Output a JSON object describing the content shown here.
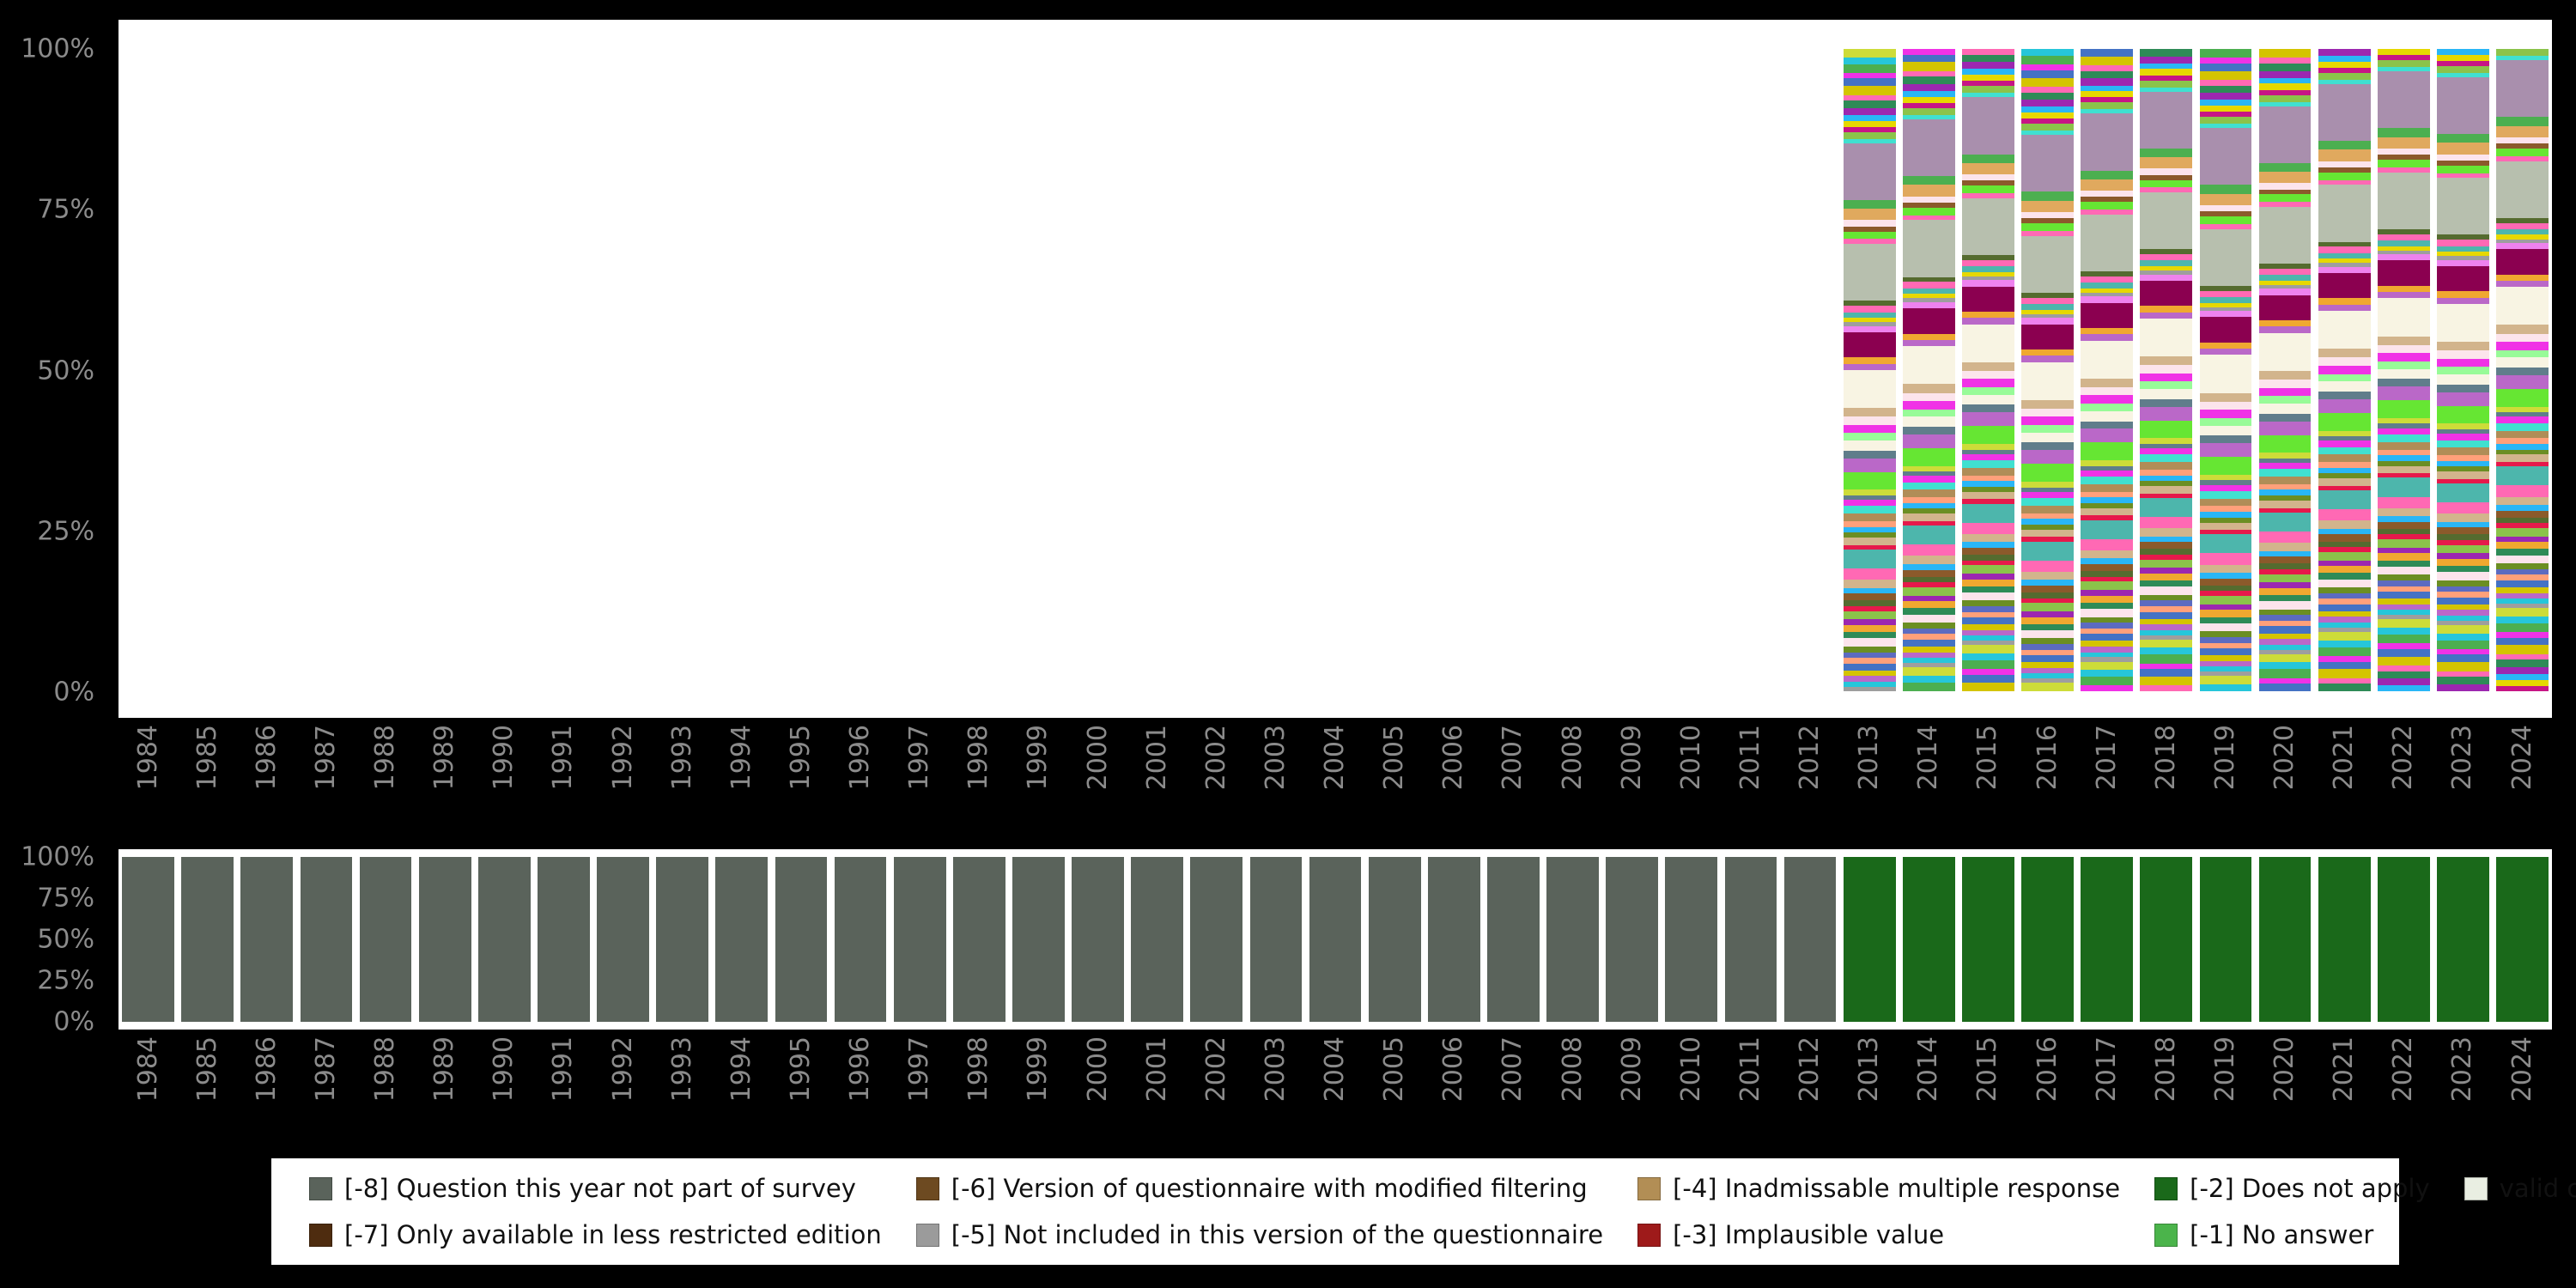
{
  "style": {
    "background": "#000000",
    "plot_background": "#ffffff",
    "axis_text_color": "#8b8b8b"
  },
  "chart_data": [
    {
      "id": "value-distribution-by-year",
      "type": "bar",
      "stacked": true,
      "categories": [
        "1984",
        "1985",
        "1986",
        "1987",
        "1988",
        "1989",
        "1990",
        "1991",
        "1992",
        "1993",
        "1994",
        "1995",
        "1996",
        "1997",
        "1998",
        "1999",
        "2000",
        "2001",
        "2002",
        "2003",
        "2004",
        "2005",
        "2006",
        "2007",
        "2008",
        "2009",
        "2010",
        "2011",
        "2012",
        "2013",
        "2014",
        "2015",
        "2016",
        "2017",
        "2018",
        "2019",
        "2020",
        "2021",
        "2022",
        "2023",
        "2024"
      ],
      "ylim": [
        0,
        100
      ],
      "y_ticks": [
        "0%",
        "25%",
        "50%",
        "75%",
        "100%"
      ],
      "unit": "percent",
      "grid": false,
      "palette": [
        "#e6194b",
        "#f032e6",
        "#ff69b4",
        "#c71585",
        "#8b0050",
        "#9c27b0",
        "#ba68c8",
        "#a98fad",
        "#5c6bc0",
        "#4472c4",
        "#29b6f6",
        "#26c6da",
        "#4db6ac",
        "#2e8b57",
        "#556b2f",
        "#4caf50",
        "#8bc34a",
        "#66e633",
        "#cddc39",
        "#d4c400",
        "#f0a830",
        "#e0a95e",
        "#d2b48c",
        "#b08d57",
        "#8b5a2b",
        "#f8f4e3",
        "#fce4ec",
        "#b7bfae",
        "#9e9e9e",
        "#607d8b",
        "#98fb98",
        "#40e0d0",
        "#ee82ee",
        "#ffa07a",
        "#6b8e23",
        "#e6d800"
      ],
      "base_segments": [
        [
          18,
          1.3
        ],
        [
          11,
          1.1
        ],
        [
          15,
          1.4
        ],
        [
          1,
          0.9
        ],
        [
          9,
          1.2
        ],
        [
          19,
          1.4
        ],
        [
          2,
          0.9
        ],
        [
          13,
          1.2
        ],
        [
          5,
          1.1
        ],
        [
          10,
          0.9
        ],
        [
          35,
          1.0
        ],
        [
          3,
          0.8
        ],
        [
          16,
          1.1
        ],
        [
          31,
          0.7
        ],
        [
          7,
          9.0
        ],
        [
          15,
          1.4
        ],
        [
          21,
          1.8
        ],
        [
          26,
          1.0
        ],
        [
          24,
          0.8
        ],
        [
          17,
          1.2
        ],
        [
          2,
          0.8
        ],
        [
          27,
          9.0
        ],
        [
          14,
          0.8
        ],
        [
          2,
          1.0
        ],
        [
          12,
          0.9
        ],
        [
          35,
          0.7
        ],
        [
          28,
          0.6
        ],
        [
          32,
          1.0
        ],
        [
          4,
          4.0
        ],
        [
          20,
          1.0
        ],
        [
          6,
          1.0
        ],
        [
          25,
          6.0
        ],
        [
          22,
          1.4
        ],
        [
          26,
          1.3
        ],
        [
          1,
          1.3
        ],
        [
          30,
          1.2
        ],
        [
          25,
          1.6
        ],
        [
          29,
          1.2
        ],
        [
          6,
          2.2
        ],
        [
          17,
          2.8
        ],
        [
          18,
          0.9
        ],
        [
          29,
          0.7
        ],
        [
          1,
          1.0
        ],
        [
          31,
          1.2
        ],
        [
          23,
          1.2
        ],
        [
          33,
          0.9
        ],
        [
          10,
          0.9
        ],
        [
          34,
          0.8
        ],
        [
          22,
          1.2
        ],
        [
          0,
          0.7
        ],
        [
          12,
          3.0
        ],
        [
          2,
          1.8
        ],
        [
          22,
          1.3
        ],
        [
          10,
          0.9
        ],
        [
          24,
          1.1
        ],
        [
          14,
          0.9
        ],
        [
          0,
          0.8
        ],
        [
          16,
          1.3
        ],
        [
          5,
          0.9
        ],
        [
          20,
          1.1
        ],
        [
          13,
          1.0
        ],
        [
          26,
          1.3
        ],
        [
          34,
          0.9
        ],
        [
          8,
          0.9
        ],
        [
          33,
          0.9
        ],
        [
          9,
          1.1
        ],
        [
          19,
          0.9
        ],
        [
          6,
          0.9
        ],
        [
          11,
          0.8
        ],
        [
          28,
          0.7
        ]
      ],
      "bars": [
        {
          "year": "2013",
          "rotate": 0
        },
        {
          "year": "2014",
          "rotate": 3
        },
        {
          "year": "2015",
          "rotate": 6
        },
        {
          "year": "2016",
          "rotate": 1
        },
        {
          "year": "2017",
          "rotate": 4
        },
        {
          "year": "2018",
          "rotate": 7
        },
        {
          "year": "2019",
          "rotate": 2
        },
        {
          "year": "2020",
          "rotate": 5
        },
        {
          "year": "2021",
          "rotate": 8
        },
        {
          "year": "2022",
          "rotate": 10
        },
        {
          "year": "2023",
          "rotate": 9
        },
        {
          "year": "2024",
          "rotate": 12
        }
      ]
    },
    {
      "id": "data-availability-by-year",
      "type": "bar",
      "stacked": true,
      "categories": [
        "1984",
        "1985",
        "1986",
        "1987",
        "1988",
        "1989",
        "1990",
        "1991",
        "1992",
        "1993",
        "1994",
        "1995",
        "1996",
        "1997",
        "1998",
        "1999",
        "2000",
        "2001",
        "2002",
        "2003",
        "2004",
        "2005",
        "2006",
        "2007",
        "2008",
        "2009",
        "2010",
        "2011",
        "2012",
        "2013",
        "2014",
        "2015",
        "2016",
        "2017",
        "2018",
        "2019",
        "2020",
        "2021",
        "2022",
        "2023",
        "2024"
      ],
      "ylim": [
        0,
        100
      ],
      "y_ticks": [
        "0%",
        "25%",
        "50%",
        "75%",
        "100%"
      ],
      "unit": "percent",
      "grid": false,
      "groups": [
        {
          "label": "[-8] Question this year not part of survey",
          "color": "#5a635b",
          "value": 100,
          "years": [
            "1984",
            "1985",
            "1986",
            "1987",
            "1988",
            "1989",
            "1990",
            "1991",
            "1992",
            "1993",
            "1994",
            "1995",
            "1996",
            "1997",
            "1998",
            "1999",
            "2000",
            "2001",
            "2002",
            "2003",
            "2004",
            "2005",
            "2006",
            "2007",
            "2008",
            "2009",
            "2010",
            "2011",
            "2012"
          ]
        },
        {
          "label": "[-2] Does not apply",
          "color": "#1a691a",
          "value": 100,
          "years": [
            "2013",
            "2014",
            "2015",
            "2016",
            "2017",
            "2018",
            "2019",
            "2020",
            "2021",
            "2022",
            "2023",
            "2024"
          ]
        }
      ]
    }
  ],
  "legend": {
    "items": [
      {
        "label": "[-8] Question this year not part of survey",
        "color": "#5a635b"
      },
      {
        "label": "[-7] Only available in less restricted edition",
        "color": "#4e2c0f"
      },
      {
        "label": "[-6] Version of questionnaire with modified filtering",
        "color": "#6d4a21"
      },
      {
        "label": "[-5] Not included in this version of the questionnaire",
        "color": "#9b9b9b"
      },
      {
        "label": "[-4] Inadmissable multiple response",
        "color": "#b28e55"
      },
      {
        "label": "[-3] Implausible value",
        "color": "#9e1a1a"
      },
      {
        "label": "[-2] Does not apply",
        "color": "#1a691a"
      },
      {
        "label": "[-1] No answer",
        "color": "#4bb44b"
      },
      {
        "label": "valid cases",
        "color": "#e9eee2"
      }
    ]
  }
}
